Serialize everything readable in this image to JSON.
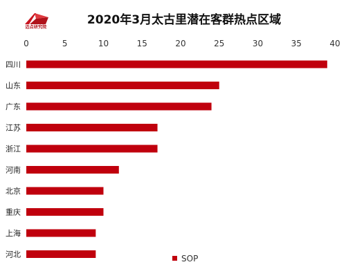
{
  "chart_data": {
    "type": "bar",
    "orientation": "horizontal",
    "title": "2020年3月太古里潜在客群热点区域",
    "categories": [
      "四川",
      "山东",
      "广东",
      "江苏",
      "浙江",
      "河南",
      "北京",
      "重庆",
      "上海",
      "河北"
    ],
    "series": [
      {
        "name": "SOP",
        "values": [
          39,
          25,
          24,
          17,
          17,
          12,
          10,
          10,
          9,
          9
        ]
      }
    ],
    "xlim": [
      0,
      40
    ],
    "xticks": [
      0,
      5,
      10,
      15,
      20,
      25,
      30,
      35,
      40
    ],
    "grid": false,
    "legend": "bottom-right",
    "bar_color": "#c0000d"
  },
  "logo": {
    "text": "迈点研究院",
    "color": "#b0121b"
  }
}
